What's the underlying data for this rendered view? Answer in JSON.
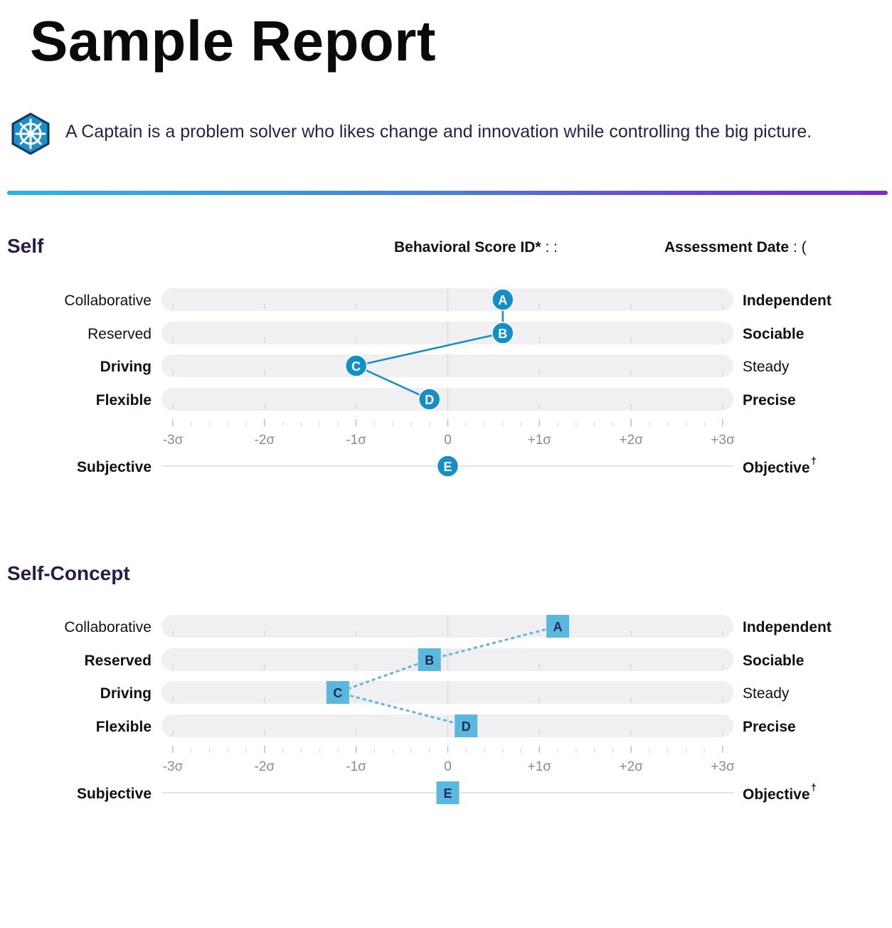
{
  "report": {
    "title": "Sample Report",
    "intro": "A Captain is a problem solver who likes change and innovation while controlling the big picture.",
    "icon": "ship-wheel-icon"
  },
  "meta": {
    "score_id_label": "Behavioral Score ID*",
    "score_id_value": ": :",
    "date_label": "Assessment Date",
    "date_value": ": ("
  },
  "colors": {
    "self_marker": "#138ec6",
    "concept_marker": "#5ab8de",
    "concept_text": "#1f2b55",
    "track": "#f0f0f2"
  },
  "chart_data": [
    {
      "type": "scatter",
      "title": "Self",
      "marker": "circle",
      "line_style": "solid",
      "x_unit": "σ",
      "xlim": [
        -3,
        3
      ],
      "tick_labels": [
        "-3σ",
        "-2σ",
        "-1σ",
        "0",
        "+1σ",
        "+2σ",
        "+3σ"
      ],
      "factors": [
        {
          "key": "A",
          "left": "Collaborative",
          "right": "Independent",
          "value": 0.6,
          "bold": "right"
        },
        {
          "key": "B",
          "left": "Reserved",
          "right": "Sociable",
          "value": 0.6,
          "bold": "right"
        },
        {
          "key": "C",
          "left": "Driving",
          "right": "Steady",
          "value": -1.0,
          "bold": "left"
        },
        {
          "key": "D",
          "left": "Flexible",
          "right": "Precise",
          "value": -0.2,
          "bold": "both"
        }
      ],
      "extra": {
        "key": "E",
        "left": "Subjective",
        "right": "Objective",
        "right_mark": "†",
        "value": 0.0
      }
    },
    {
      "type": "scatter",
      "title": "Self-Concept",
      "marker": "square",
      "line_style": "dashed",
      "x_unit": "σ",
      "xlim": [
        -3,
        3
      ],
      "tick_labels": [
        "-3σ",
        "-2σ",
        "-1σ",
        "0",
        "+1σ",
        "+2σ",
        "+3σ"
      ],
      "factors": [
        {
          "key": "A",
          "left": "Collaborative",
          "right": "Independent",
          "value": 1.2,
          "bold": "right"
        },
        {
          "key": "B",
          "left": "Reserved",
          "right": "Sociable",
          "value": -0.2,
          "bold": "both"
        },
        {
          "key": "C",
          "left": "Driving",
          "right": "Steady",
          "value": -1.2,
          "bold": "left"
        },
        {
          "key": "D",
          "left": "Flexible",
          "right": "Precise",
          "value": 0.2,
          "bold": "both"
        }
      ],
      "extra": {
        "key": "E",
        "left": "Subjective",
        "right": "Objective",
        "right_mark": "†",
        "value": 0.0
      }
    }
  ]
}
